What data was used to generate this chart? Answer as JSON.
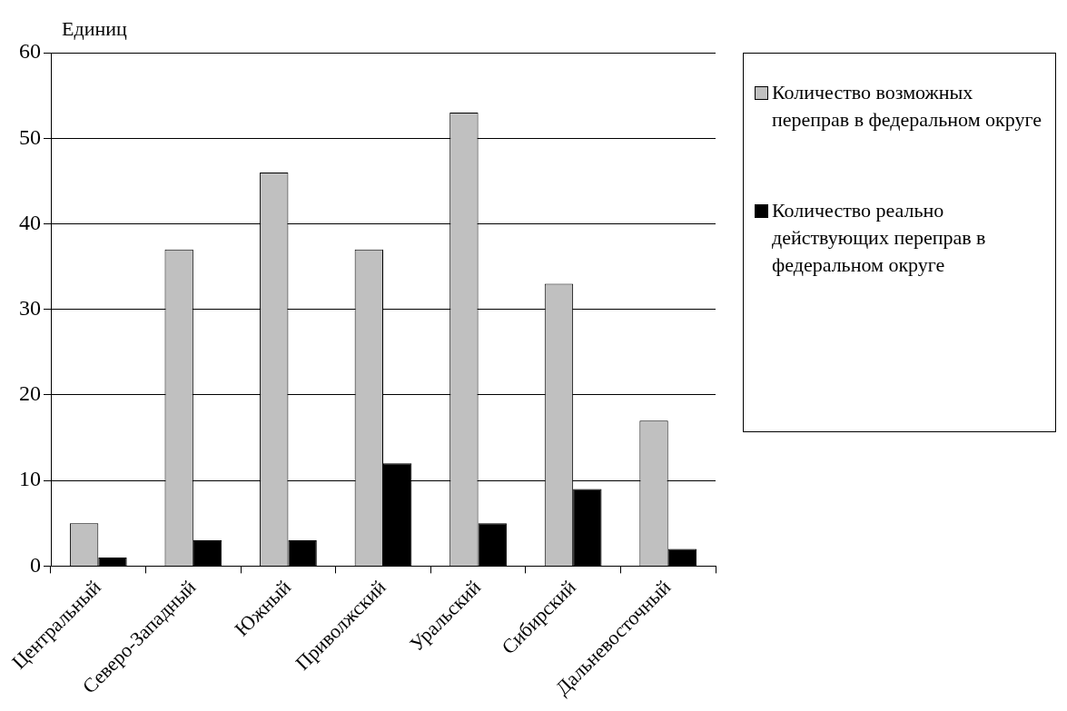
{
  "chart_data": {
    "type": "bar",
    "ylabel": "Единиц",
    "categories": [
      "Центральный",
      "Северо-Западный",
      "Южный",
      "Приволжский",
      "Уральский",
      "Сибирский",
      "Дальневосточный"
    ],
    "series": [
      {
        "name": "Количество возможных переправ в федеральном округе",
        "color": "#c0c0c0",
        "values": [
          5,
          37,
          46,
          37,
          53,
          33,
          17
        ]
      },
      {
        "name": "Количество реально действующих переправ в федеральном округе",
        "color": "#000000",
        "values": [
          1,
          3,
          3,
          12,
          5,
          9,
          2
        ]
      }
    ],
    "ylim": [
      0,
      60
    ],
    "yticks": [
      0,
      10,
      20,
      30,
      40,
      50,
      60
    ],
    "grid": "y",
    "legend": "right"
  }
}
